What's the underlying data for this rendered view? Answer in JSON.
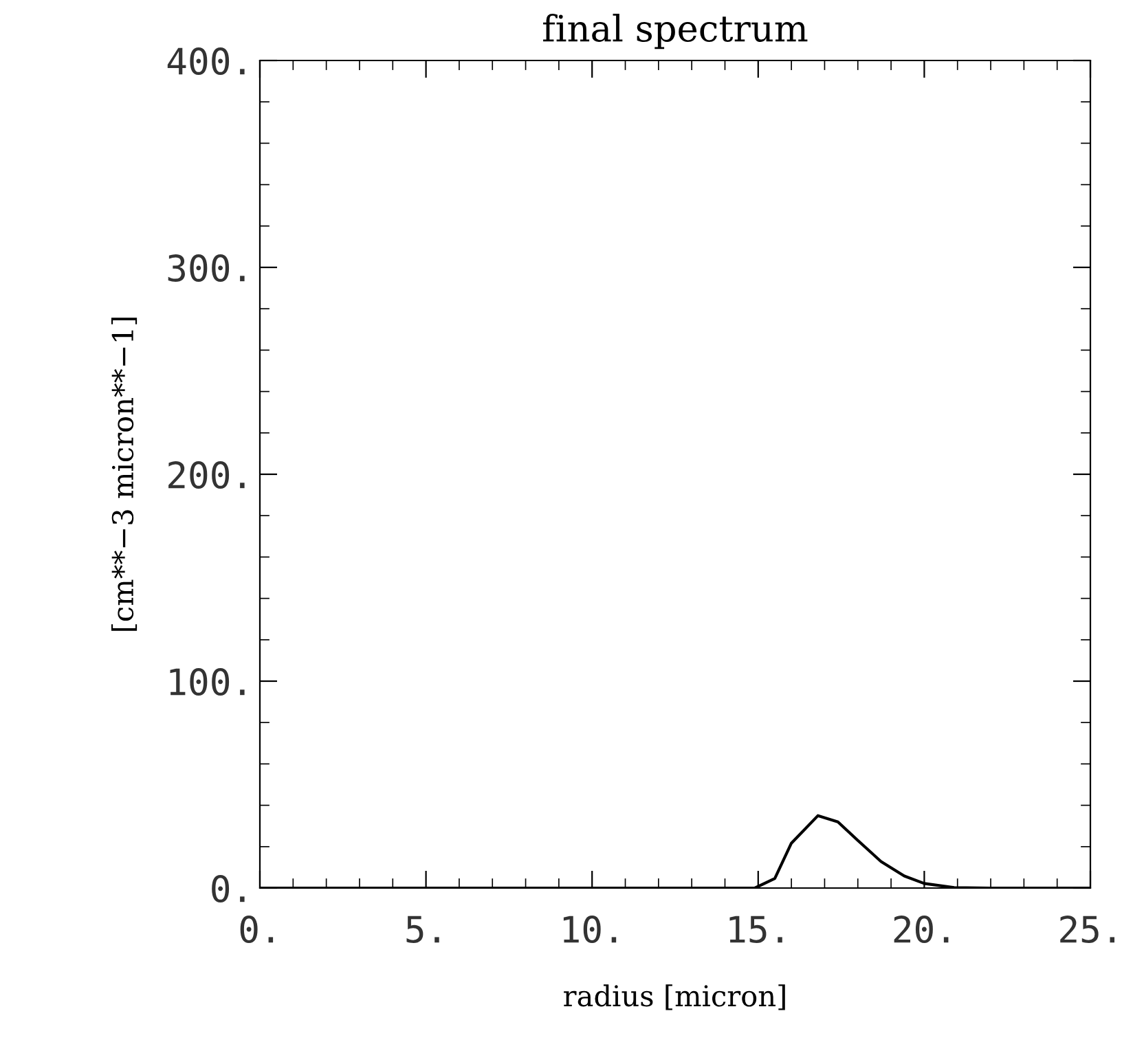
{
  "chart_data": {
    "type": "line",
    "title": "final spectrum",
    "xlabel": "radius [micron]",
    "ylabel": "[cm**−3 micron**−1]",
    "xlim": [
      0,
      25
    ],
    "ylim": [
      0,
      400
    ],
    "xticks": [
      {
        "value": 0,
        "label": "0."
      },
      {
        "value": 5,
        "label": "5."
      },
      {
        "value": 10,
        "label": "10."
      },
      {
        "value": 15,
        "label": "15."
      },
      {
        "value": 20,
        "label": "20."
      },
      {
        "value": 25,
        "label": "25."
      }
    ],
    "yticks": [
      {
        "value": 0,
        "label": "0."
      },
      {
        "value": 100,
        "label": "100."
      },
      {
        "value": 200,
        "label": "200."
      },
      {
        "value": 300,
        "label": "300."
      },
      {
        "value": 400,
        "label": "400."
      }
    ],
    "grid": false,
    "marker": "none",
    "line_style": "solid",
    "series": [
      {
        "color": "#000000",
        "x": [
          0,
          5,
          10,
          14.9,
          15.5,
          16.0,
          16.8,
          17.4,
          18.0,
          18.7,
          19.4,
          20.0,
          20.9,
          22,
          25
        ],
        "values": [
          0,
          0,
          0,
          0,
          4.6,
          21.7,
          35,
          32,
          23,
          12.8,
          5.8,
          2.2,
          0.2,
          0,
          0
        ]
      }
    ]
  }
}
